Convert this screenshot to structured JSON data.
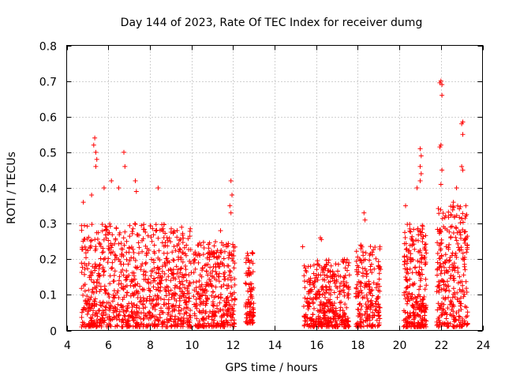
{
  "chart_data": {
    "type": "scatter",
    "title": "Day 144 of 2023, Rate Of TEC Index for receiver dumg",
    "xlabel": "GPS time / hours",
    "ylabel": "ROTI / TECUs",
    "xlim": [
      4,
      24
    ],
    "ylim": [
      0,
      0.8
    ],
    "x_ticks": [
      4,
      6,
      8,
      10,
      12,
      14,
      16,
      18,
      20,
      22,
      24
    ],
    "x_tick_labels": [
      "4",
      "6",
      "8",
      "10",
      "12",
      "14",
      "16",
      "18",
      "20",
      "22",
      "24"
    ],
    "y_ticks": [
      0,
      0.1,
      0.2,
      0.3,
      0.4,
      0.5,
      0.6,
      0.7,
      0.8
    ],
    "y_tick_labels": [
      "0",
      "0.1",
      "0.2",
      "0.3",
      "0.4",
      "0.5",
      "0.6",
      "0.7",
      "0.8"
    ],
    "grid": true,
    "marker": "+",
    "marker_color": "#ff0000",
    "series": [
      {
        "name": "ROTI",
        "clusters": [
          {
            "x_range": [
              4.7,
              10.0
            ],
            "y_range": [
              0.01,
              0.3
            ],
            "count": 900
          },
          {
            "x_range": [
              10.1,
              12.1
            ],
            "y_range": [
              0.01,
              0.25
            ],
            "count": 350
          },
          {
            "x_range": [
              12.6,
              13.0
            ],
            "y_range": [
              0.02,
              0.22
            ],
            "count": 90
          },
          {
            "x_range": [
              15.4,
              17.6
            ],
            "y_range": [
              0.01,
              0.2
            ],
            "count": 380
          },
          {
            "x_range": [
              17.9,
              19.1
            ],
            "y_range": [
              0.01,
              0.25
            ],
            "count": 200
          },
          {
            "x_range": [
              20.2,
              21.3
            ],
            "y_range": [
              0.01,
              0.3
            ],
            "count": 260
          },
          {
            "x_range": [
              21.8,
              23.3
            ],
            "y_range": [
              0.01,
              0.35
            ],
            "count": 300
          }
        ],
        "points": [
          {
            "x": 5.35,
            "y": 0.54
          },
          {
            "x": 5.3,
            "y": 0.52
          },
          {
            "x": 5.4,
            "y": 0.5
          },
          {
            "x": 5.45,
            "y": 0.48
          },
          {
            "x": 5.4,
            "y": 0.46
          },
          {
            "x": 6.75,
            "y": 0.5
          },
          {
            "x": 6.8,
            "y": 0.46
          },
          {
            "x": 6.15,
            "y": 0.42
          },
          {
            "x": 6.5,
            "y": 0.4
          },
          {
            "x": 5.8,
            "y": 0.4
          },
          {
            "x": 7.3,
            "y": 0.42
          },
          {
            "x": 7.35,
            "y": 0.39
          },
          {
            "x": 8.4,
            "y": 0.4
          },
          {
            "x": 5.2,
            "y": 0.38
          },
          {
            "x": 11.9,
            "y": 0.42
          },
          {
            "x": 11.95,
            "y": 0.38
          },
          {
            "x": 11.85,
            "y": 0.35
          },
          {
            "x": 11.9,
            "y": 0.33
          },
          {
            "x": 11.4,
            "y": 0.28
          },
          {
            "x": 18.3,
            "y": 0.33
          },
          {
            "x": 18.35,
            "y": 0.31
          },
          {
            "x": 21.0,
            "y": 0.51
          },
          {
            "x": 21.05,
            "y": 0.49
          },
          {
            "x": 21.0,
            "y": 0.46
          },
          {
            "x": 21.05,
            "y": 0.44
          },
          {
            "x": 21.0,
            "y": 0.42
          },
          {
            "x": 20.85,
            "y": 0.4
          },
          {
            "x": 22.0,
            "y": 0.7
          },
          {
            "x": 21.95,
            "y": 0.695
          },
          {
            "x": 22.05,
            "y": 0.69
          },
          {
            "x": 22.05,
            "y": 0.66
          },
          {
            "x": 22.0,
            "y": 0.52
          },
          {
            "x": 21.95,
            "y": 0.515
          },
          {
            "x": 22.05,
            "y": 0.45
          },
          {
            "x": 22.0,
            "y": 0.41
          },
          {
            "x": 23.05,
            "y": 0.585
          },
          {
            "x": 23.0,
            "y": 0.58
          },
          {
            "x": 23.05,
            "y": 0.55
          },
          {
            "x": 23.0,
            "y": 0.46
          },
          {
            "x": 23.05,
            "y": 0.45
          },
          {
            "x": 22.75,
            "y": 0.4
          },
          {
            "x": 22.6,
            "y": 0.36
          },
          {
            "x": 23.2,
            "y": 0.35
          },
          {
            "x": 20.3,
            "y": 0.35
          },
          {
            "x": 16.2,
            "y": 0.26
          },
          {
            "x": 16.25,
            "y": 0.255
          },
          {
            "x": 15.35,
            "y": 0.235
          },
          {
            "x": 4.8,
            "y": 0.36
          }
        ]
      }
    ]
  }
}
